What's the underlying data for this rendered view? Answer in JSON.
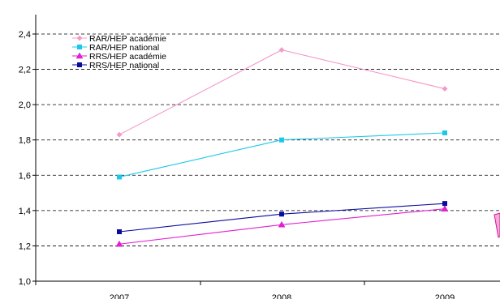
{
  "chart_data": {
    "type": "line",
    "categories": [
      "2007",
      "2008",
      "2009"
    ],
    "ylim": [
      1.0,
      2.4
    ],
    "yticks": [
      "1,0",
      "1,2",
      "1,4",
      "1,6",
      "1,8",
      "2,0",
      "2,2",
      "2,4"
    ],
    "ytick_values": [
      1.0,
      1.2,
      1.4,
      1.6,
      1.8,
      2.0,
      2.2,
      2.4
    ],
    "grid": "dashed-horizontal",
    "legend_position": "top-left",
    "series": [
      {
        "name": "RAR/HEP académie",
        "values": [
          1.83,
          2.31,
          2.09
        ],
        "color": "#f39ac8",
        "marker": "diamond"
      },
      {
        "name": "RAR/HEP national",
        "values": [
          1.59,
          1.8,
          1.84
        ],
        "color": "#1cc8e8",
        "marker": "square"
      },
      {
        "name": "RRS/HEP académie",
        "values": [
          1.21,
          1.32,
          1.41
        ],
        "color": "#e020d0",
        "marker": "triangle"
      },
      {
        "name": "RRS/HEP national",
        "values": [
          1.28,
          1.38,
          1.44
        ],
        "color": "#0a0a9e",
        "marker": "square"
      }
    ],
    "accent_colors": {
      "fragment_fill": "#f6a8d6",
      "fragment_stroke": "#d01a9c"
    }
  }
}
